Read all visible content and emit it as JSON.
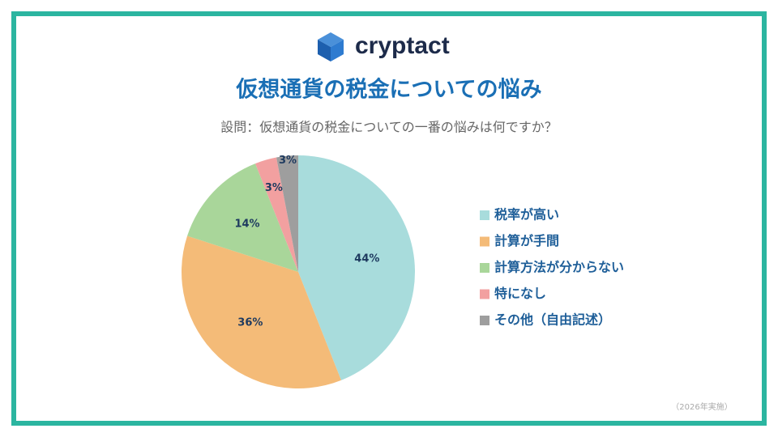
{
  "brand": "cryptact",
  "note": "（2026年実施）",
  "chart_data": {
    "type": "pie",
    "title": "仮想通貨の税金についての悩み",
    "subtitle": "設問：仮想通貨の税金についての一番の悩みは何ですか？",
    "categories": [
      "税率が高い",
      "計算が手間",
      "計算方法が分からない",
      "特になし",
      "その他（自由記述）"
    ],
    "values": [
      44,
      36,
      14,
      3,
      3
    ],
    "value_labels": [
      "44%",
      "36%",
      "14%",
      "3%",
      "3%"
    ],
    "colors": [
      "#a8dcdc",
      "#f4bb78",
      "#a9d69a",
      "#f2a0a0",
      "#9e9e9e"
    ],
    "legend": "right"
  }
}
